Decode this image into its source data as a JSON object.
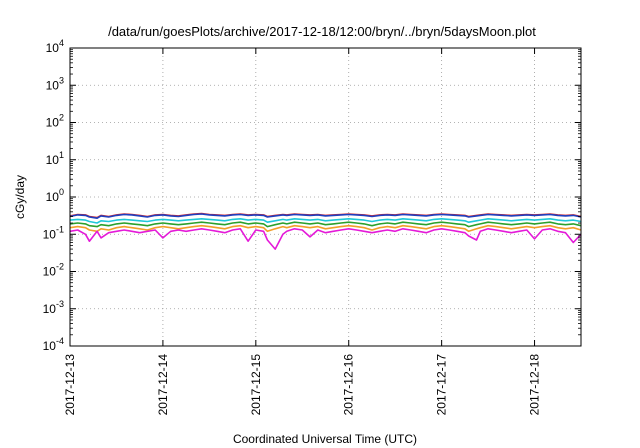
{
  "chart_data": {
    "type": "line",
    "title": "/data/run/goesPlots/archive/2017-12-18/12:00/bryn/../bryn/5daysMoon.plot",
    "xlabel": "Coordinated Universal Time (UTC)",
    "ylabel": "cGy/day",
    "yscale": "log",
    "ylim": [
      0.0001,
      10000
    ],
    "xlim": [
      "2017-12-13",
      "2017-12-18 12:00"
    ],
    "grid": true,
    "x_ticks": [
      "2017-12-13",
      "2017-12-14",
      "2017-12-15",
      "2017-12-16",
      "2017-12-17",
      "2017-12-18"
    ],
    "y_ticks": [
      {
        "base": "10",
        "exp": "-4"
      },
      {
        "base": "10",
        "exp": "-3"
      },
      {
        "base": "10",
        "exp": "-2"
      },
      {
        "base": "10",
        "exp": "-1"
      },
      {
        "base": "10",
        "exp": "0"
      },
      {
        "base": "10",
        "exp": "1"
      },
      {
        "base": "10",
        "exp": "2"
      },
      {
        "base": "10",
        "exp": "3"
      },
      {
        "base": "10",
        "exp": "4"
      }
    ],
    "x": [
      "2017-12-13 00:00",
      "2017-12-13 02:00",
      "2017-12-13 04:00",
      "2017-12-13 05:00",
      "2017-12-13 07:00",
      "2017-12-13 08:00",
      "2017-12-13 10:00",
      "2017-12-13 12:00",
      "2017-12-13 14:00",
      "2017-12-13 16:00",
      "2017-12-13 18:00",
      "2017-12-13 20:00",
      "2017-12-13 22:00",
      "2017-12-14 00:00",
      "2017-12-14 02:00",
      "2017-12-14 04:00",
      "2017-12-14 06:00",
      "2017-12-14 08:00",
      "2017-12-14 10:00",
      "2017-12-14 12:00",
      "2017-12-14 14:00",
      "2017-12-14 16:00",
      "2017-12-14 18:00",
      "2017-12-14 20:00",
      "2017-12-14 22:00",
      "2017-12-15 00:00",
      "2017-12-15 02:00",
      "2017-12-15 03:00",
      "2017-12-15 05:00",
      "2017-12-15 07:00",
      "2017-12-15 08:00",
      "2017-12-15 10:00",
      "2017-12-15 12:00",
      "2017-12-15 14:00",
      "2017-12-15 16:00",
      "2017-12-15 18:00",
      "2017-12-15 20:00",
      "2017-12-15 22:00",
      "2017-12-16 00:00",
      "2017-12-16 02:00",
      "2017-12-16 04:00",
      "2017-12-16 06:00",
      "2017-12-16 08:00",
      "2017-12-16 10:00",
      "2017-12-16 12:00",
      "2017-12-16 14:00",
      "2017-12-16 16:00",
      "2017-12-16 18:00",
      "2017-12-16 20:00",
      "2017-12-16 22:00",
      "2017-12-17 00:00",
      "2017-12-17 02:00",
      "2017-12-17 04:00",
      "2017-12-17 06:00",
      "2017-12-17 07:00",
      "2017-12-17 09:00",
      "2017-12-17 10:00",
      "2017-12-17 12:00",
      "2017-12-17 14:00",
      "2017-12-17 16:00",
      "2017-12-17 18:00",
      "2017-12-17 20:00",
      "2017-12-17 22:00",
      "2017-12-18 00:00",
      "2017-12-18 02:00",
      "2017-12-18 04:00",
      "2017-12-18 06:00",
      "2017-12-18 08:00",
      "2017-12-18 10:00",
      "2017-12-18 12:00"
    ],
    "series": [
      {
        "color": "#d62728",
        "values": [
          0.31,
          0.34,
          0.33,
          0.3,
          0.28,
          0.32,
          0.3,
          0.33,
          0.35,
          0.34,
          0.32,
          0.3,
          0.33,
          0.34,
          0.32,
          0.31,
          0.33,
          0.35,
          0.36,
          0.34,
          0.33,
          0.32,
          0.34,
          0.35,
          0.33,
          0.34,
          0.33,
          0.3,
          0.32,
          0.34,
          0.33,
          0.35,
          0.34,
          0.33,
          0.34,
          0.32,
          0.33,
          0.34,
          0.35,
          0.34,
          0.33,
          0.31,
          0.33,
          0.34,
          0.33,
          0.35,
          0.34,
          0.33,
          0.32,
          0.34,
          0.35,
          0.34,
          0.33,
          0.32,
          0.3,
          0.32,
          0.33,
          0.35,
          0.34,
          0.33,
          0.32,
          0.33,
          0.34,
          0.33,
          0.34,
          0.35,
          0.33,
          0.32,
          0.33,
          0.3
        ]
      },
      {
        "color": "#1f3fbf",
        "values": [
          0.3,
          0.33,
          0.32,
          0.29,
          0.27,
          0.31,
          0.29,
          0.32,
          0.34,
          0.33,
          0.31,
          0.29,
          0.32,
          0.33,
          0.31,
          0.3,
          0.32,
          0.34,
          0.35,
          0.33,
          0.32,
          0.31,
          0.33,
          0.34,
          0.32,
          0.33,
          0.32,
          0.29,
          0.31,
          0.33,
          0.32,
          0.34,
          0.33,
          0.32,
          0.33,
          0.31,
          0.32,
          0.33,
          0.34,
          0.33,
          0.32,
          0.3,
          0.32,
          0.33,
          0.32,
          0.34,
          0.33,
          0.32,
          0.31,
          0.33,
          0.34,
          0.33,
          0.32,
          0.31,
          0.29,
          0.31,
          0.32,
          0.34,
          0.33,
          0.32,
          0.31,
          0.32,
          0.33,
          0.32,
          0.33,
          0.34,
          0.32,
          0.31,
          0.32,
          0.29
        ]
      },
      {
        "color": "#20c8d8",
        "values": [
          0.24,
          0.25,
          0.24,
          0.22,
          0.2,
          0.23,
          0.22,
          0.24,
          0.25,
          0.24,
          0.23,
          0.22,
          0.24,
          0.25,
          0.24,
          0.23,
          0.24,
          0.25,
          0.26,
          0.25,
          0.24,
          0.23,
          0.25,
          0.26,
          0.24,
          0.25,
          0.24,
          0.21,
          0.23,
          0.25,
          0.24,
          0.26,
          0.25,
          0.24,
          0.25,
          0.23,
          0.24,
          0.25,
          0.26,
          0.25,
          0.24,
          0.22,
          0.24,
          0.25,
          0.24,
          0.26,
          0.25,
          0.24,
          0.23,
          0.25,
          0.26,
          0.25,
          0.24,
          0.23,
          0.21,
          0.23,
          0.24,
          0.26,
          0.25,
          0.24,
          0.23,
          0.24,
          0.25,
          0.24,
          0.25,
          0.26,
          0.24,
          0.23,
          0.24,
          0.22
        ]
      },
      {
        "color": "#2ca02c",
        "values": [
          0.19,
          0.2,
          0.19,
          0.17,
          0.16,
          0.18,
          0.17,
          0.19,
          0.2,
          0.19,
          0.18,
          0.17,
          0.19,
          0.2,
          0.19,
          0.18,
          0.19,
          0.2,
          0.21,
          0.2,
          0.19,
          0.18,
          0.2,
          0.21,
          0.19,
          0.2,
          0.19,
          0.16,
          0.18,
          0.2,
          0.19,
          0.21,
          0.2,
          0.19,
          0.2,
          0.18,
          0.19,
          0.2,
          0.21,
          0.2,
          0.19,
          0.17,
          0.19,
          0.2,
          0.19,
          0.21,
          0.2,
          0.19,
          0.18,
          0.2,
          0.21,
          0.2,
          0.19,
          0.18,
          0.16,
          0.18,
          0.19,
          0.21,
          0.2,
          0.19,
          0.18,
          0.19,
          0.2,
          0.19,
          0.2,
          0.21,
          0.19,
          0.18,
          0.19,
          0.17
        ]
      },
      {
        "color": "#f2a02a",
        "values": [
          0.15,
          0.16,
          0.15,
          0.13,
          0.12,
          0.14,
          0.13,
          0.15,
          0.16,
          0.15,
          0.14,
          0.13,
          0.15,
          0.16,
          0.15,
          0.14,
          0.15,
          0.16,
          0.17,
          0.16,
          0.15,
          0.14,
          0.16,
          0.17,
          0.15,
          0.16,
          0.15,
          0.12,
          0.14,
          0.16,
          0.15,
          0.17,
          0.16,
          0.15,
          0.16,
          0.14,
          0.15,
          0.16,
          0.17,
          0.16,
          0.15,
          0.13,
          0.15,
          0.16,
          0.15,
          0.17,
          0.16,
          0.15,
          0.14,
          0.16,
          0.17,
          0.16,
          0.15,
          0.14,
          0.12,
          0.14,
          0.15,
          0.17,
          0.16,
          0.15,
          0.14,
          0.15,
          0.16,
          0.15,
          0.16,
          0.17,
          0.15,
          0.14,
          0.15,
          0.13
        ]
      },
      {
        "color": "#e41ad8",
        "values": [
          0.12,
          0.13,
          0.1,
          0.065,
          0.12,
          0.08,
          0.11,
          0.12,
          0.13,
          0.12,
          0.11,
          0.12,
          0.13,
          0.08,
          0.12,
          0.13,
          0.12,
          0.13,
          0.14,
          0.13,
          0.12,
          0.11,
          0.13,
          0.14,
          0.065,
          0.13,
          0.12,
          0.07,
          0.04,
          0.1,
          0.12,
          0.14,
          0.13,
          0.085,
          0.13,
          0.11,
          0.12,
          0.13,
          0.14,
          0.13,
          0.12,
          0.11,
          0.12,
          0.13,
          0.12,
          0.14,
          0.13,
          0.12,
          0.11,
          0.13,
          0.14,
          0.13,
          0.12,
          0.11,
          0.09,
          0.07,
          0.12,
          0.14,
          0.13,
          0.12,
          0.11,
          0.12,
          0.13,
          0.075,
          0.13,
          0.14,
          0.12,
          0.11,
          0.06,
          0.1
        ]
      }
    ]
  }
}
